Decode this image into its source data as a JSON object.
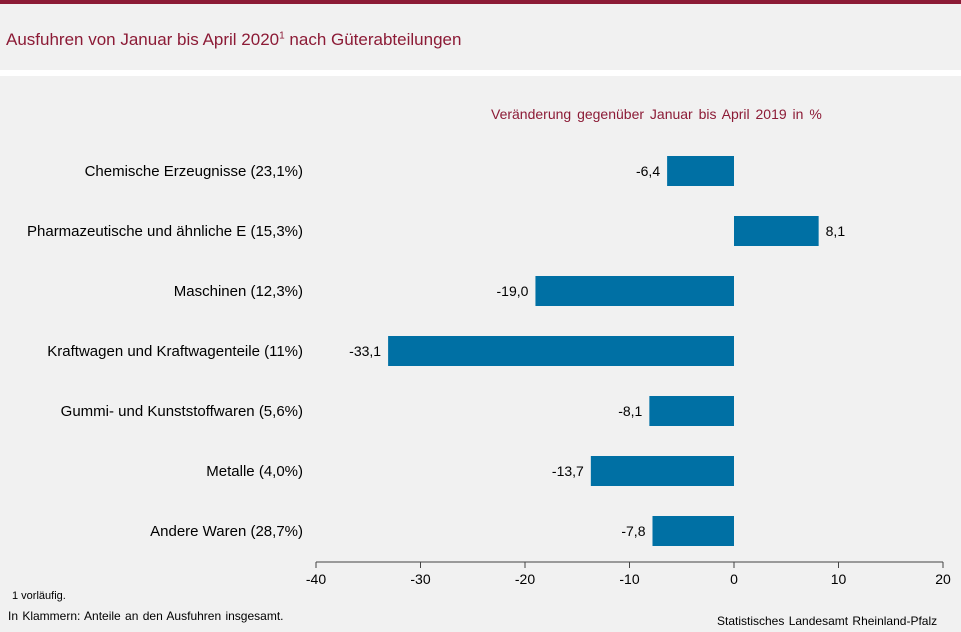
{
  "header": {
    "title": "Ausfuhren von Januar bis April 2020",
    "title_sup": "1",
    "title_end": " nach Güterabteilungen"
  },
  "colors": {
    "accent": "#8c1b36",
    "bar": "#0070a4"
  },
  "chart_data": {
    "type": "bar",
    "orientation": "horizontal",
    "subtitle": "Veränderung gegenüber Januar bis April 2019 in %",
    "categories": [
      "Chemische Erzeugnisse (23,1%)",
      "Pharmazeutische und ähnliche E (15,3%)",
      "Maschinen (12,3%)",
      "Kraftwagen und Kraftwagenteile (11%)",
      "Gummi- und Kunststoffwaren (5,6%)",
      "Metalle (4,0%)",
      "Andere Waren (28,7%)"
    ],
    "values": [
      -6.4,
      8.1,
      -19.0,
      -33.1,
      -8.1,
      -13.7,
      -7.8
    ],
    "value_labels": [
      "-6,4",
      "8,1",
      "-19,0",
      "-33,1",
      "-8,1",
      "-13,7",
      "-7,8"
    ],
    "xlim": [
      -40,
      20
    ],
    "xticks": [
      -40,
      -30,
      -20,
      -10,
      0,
      10,
      20
    ],
    "grid": false
  },
  "footnotes": {
    "note1": "1 vorläufig.",
    "note2": "In Klammern: Anteile an den Ausfuhren insgesamt.",
    "source": "Statistisches Landesamt Rheinland-Pfalz"
  }
}
